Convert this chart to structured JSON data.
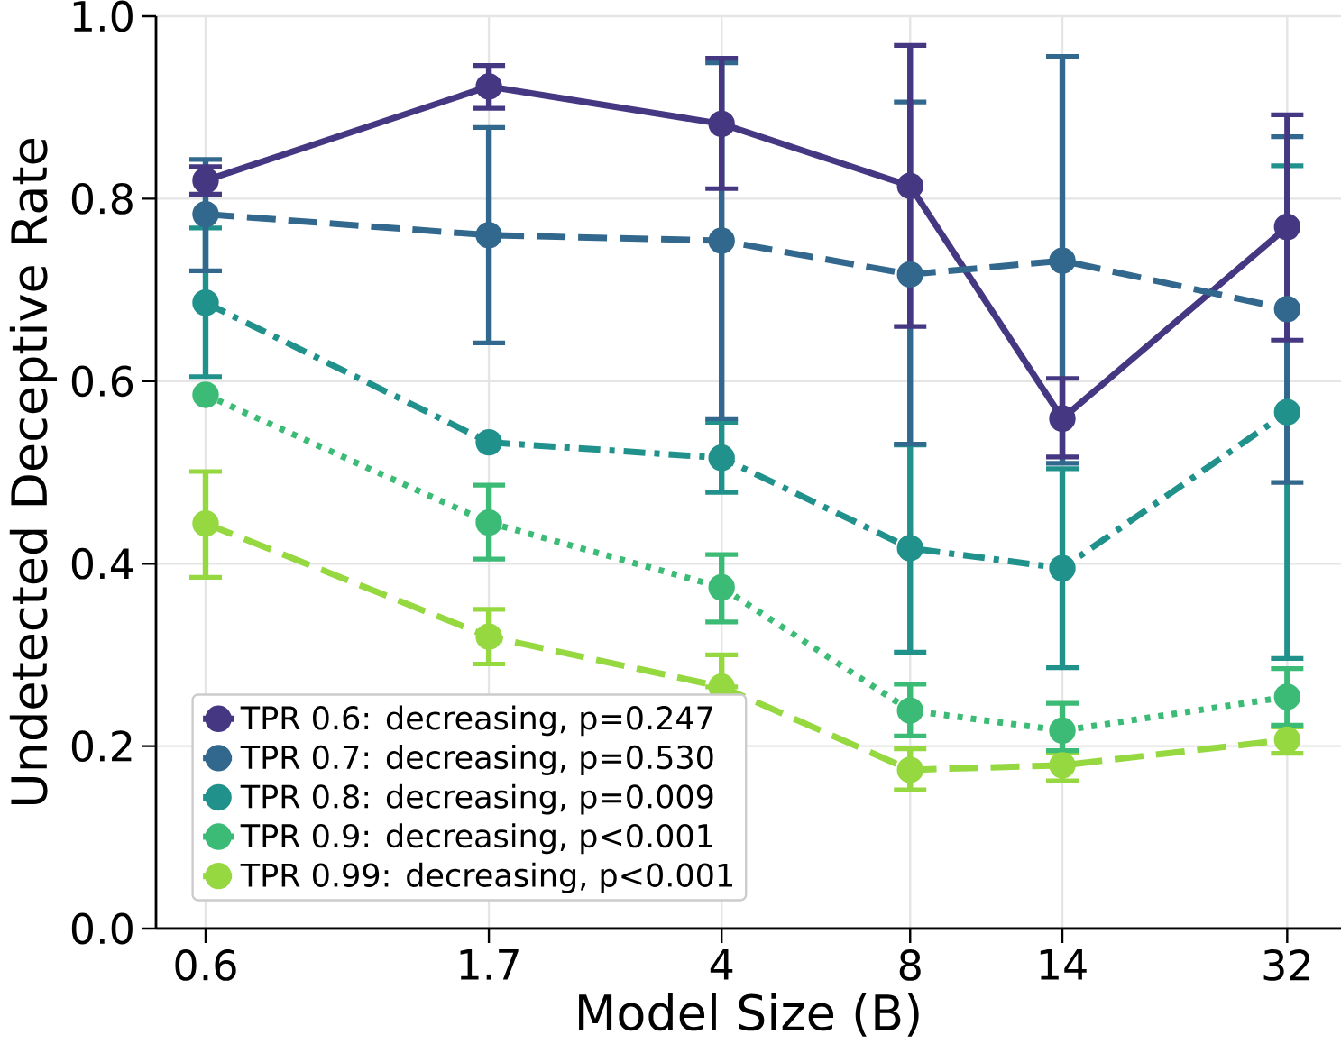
{
  "chart_data": {
    "type": "line",
    "xlabel": "Model Size (B)",
    "ylabel": "Undetected Deceptive Rate",
    "x": [
      0.6,
      1.7,
      4,
      8,
      14,
      32
    ],
    "log": "x",
    "xlim": [
      0.5,
      39
    ],
    "xticks": [
      0.6,
      1.7,
      4,
      8,
      14,
      32
    ],
    "ylim": [
      0,
      1
    ],
    "yticks": [
      {
        "value": 0,
        "label": "0.0"
      },
      0.2,
      0.4,
      0.6,
      0.8,
      {
        "value": 1,
        "label": "1.0"
      }
    ],
    "grid": true,
    "legend": "bottom left",
    "marker": "circle",
    "series": [
      {
        "name": "TPR 0.6: decreasing, p=0.247",
        "color": "#453781",
        "line_style": "solid",
        "values": [
          0.82,
          0.923,
          0.882,
          0.814,
          0.559,
          0.769
        ],
        "errors": [
          [
            0.805,
            0.835
          ],
          [
            0.899,
            0.946
          ],
          [
            0.811,
            0.954
          ],
          [
            0.66,
            0.968
          ],
          [
            0.517,
            0.603
          ],
          [
            0.645,
            0.892
          ]
        ]
      },
      {
        "name": "TPR 0.7: decreasing, p=0.530",
        "color": "#32688d",
        "line_style": "dashed",
        "values": [
          0.783,
          0.76,
          0.754,
          0.717,
          0.732,
          0.679
        ],
        "errors": [
          [
            0.721,
            0.843
          ],
          [
            0.642,
            0.878
          ],
          [
            0.559,
            0.949
          ],
          [
            0.531,
            0.906
          ],
          [
            0.51,
            0.956
          ],
          [
            0.489,
            0.868
          ]
        ]
      },
      {
        "name": "TPR 0.8: decreasing, p=0.009",
        "color": "#21918c",
        "line_style": "dashdot",
        "values": [
          0.686,
          0.533,
          0.516,
          0.417,
          0.395,
          0.566
        ],
        "errors": [
          [
            0.605,
            0.768
          ],
          null,
          [
            0.478,
            0.555
          ],
          [
            0.303,
            0.53
          ],
          [
            0.286,
            0.504
          ],
          [
            0.296,
            0.836
          ]
        ]
      },
      {
        "name": "TPR 0.9: decreasing, p<0.001",
        "color": "#3bbb75",
        "line_style": "dotted",
        "values": [
          0.585,
          0.445,
          0.374,
          0.239,
          0.217,
          0.254
        ],
        "errors": [
          null,
          [
            0.405,
            0.486
          ],
          [
            0.336,
            0.41
          ],
          [
            0.211,
            0.268
          ],
          [
            0.195,
            0.247
          ],
          [
            0.223,
            0.285
          ]
        ]
      },
      {
        "name": "TPR 0.99: decreasing, p<0.001",
        "color": "#95d840",
        "line_style": "dashed",
        "values": [
          0.444,
          0.32,
          0.265,
          0.174,
          0.179,
          0.207
        ],
        "errors": [
          [
            0.385,
            0.501
          ],
          [
            0.29,
            0.35
          ],
          [
            0.265,
            0.3
          ],
          [
            0.152,
            0.197
          ],
          [
            0.162,
            0.193
          ],
          [
            0.192,
            0.221
          ]
        ]
      }
    ]
  }
}
